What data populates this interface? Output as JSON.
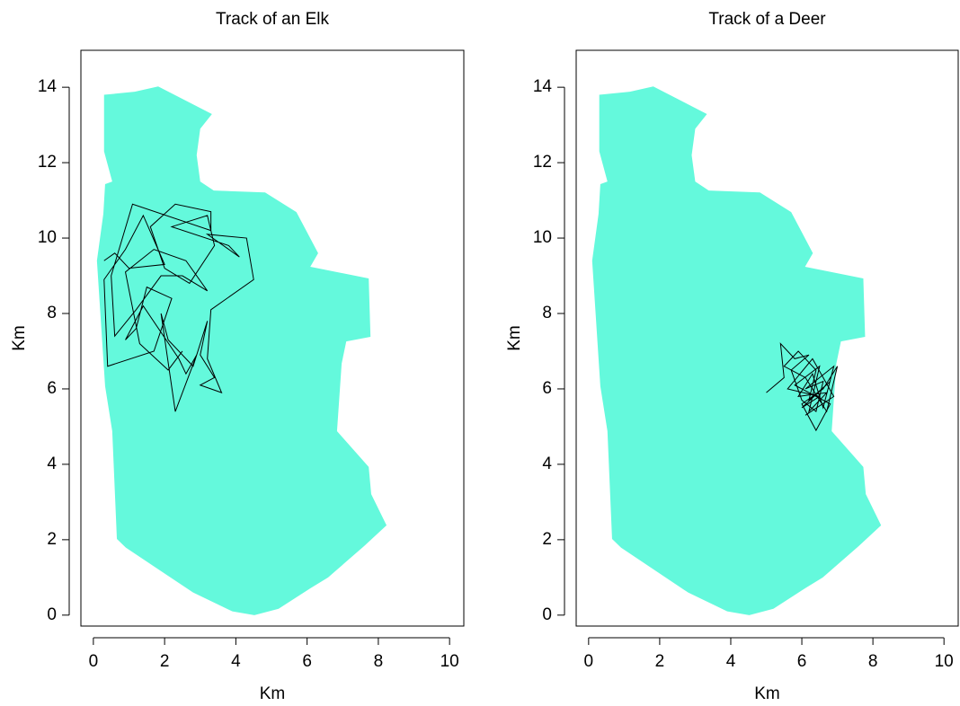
{
  "chart_data": [
    {
      "type": "line",
      "title": "Track of an Elk",
      "xlabel": "Km",
      "ylabel": "Km",
      "xlim": [
        -0.35,
        10.4
      ],
      "ylim": [
        -0.29,
        14.98
      ],
      "xticks": [
        0,
        2,
        4,
        6,
        8,
        10
      ],
      "yticks": [
        0,
        2,
        4,
        6,
        8,
        10,
        12,
        14
      ],
      "region": {
        "color": "#64f9dc",
        "x": [
          0.3,
          1.16,
          1.82,
          3.33,
          3.0,
          2.9,
          3.0,
          3.38,
          4.82,
          5.7,
          6.31,
          6.09,
          7.73,
          7.78,
          7.1,
          6.97,
          6.84,
          7.73,
          7.8,
          8.23,
          7.6,
          6.59,
          6.09,
          5.2,
          4.52,
          3.9,
          2.8,
          0.91,
          0.66,
          0.53,
          0.33,
          0.1,
          0.28,
          0.33,
          0.53,
          0.3
        ],
        "y": [
          13.8,
          13.88,
          14.02,
          13.29,
          12.9,
          12.2,
          11.5,
          11.26,
          11.21,
          10.69,
          9.6,
          9.24,
          8.93,
          7.38,
          7.26,
          6.67,
          4.88,
          3.93,
          3.21,
          2.38,
          1.83,
          1.0,
          0.71,
          0.17,
          0.0,
          0.1,
          0.6,
          1.79,
          2.02,
          4.88,
          6.07,
          9.4,
          10.64,
          11.43,
          11.5,
          12.3
        ]
      },
      "series": [
        {
          "color": "#000000",
          "x": [
            0.3,
            0.6,
            1.0,
            2.0,
            1.4,
            0.9,
            0.3,
            0.4,
            1.7,
            2.2,
            1.5,
            1.2,
            0.9,
            1.4,
            2.4,
            2.6,
            2.9,
            2.3,
            1.9,
            2.1,
            2.8,
            3.2,
            3.0,
            3.4,
            3.0,
            3.6,
            3.2,
            3.3,
            4.5,
            4.3,
            3.2,
            4.1,
            3.8,
            2.2,
            3.2,
            3.4,
            2.7,
            2.0,
            1.6,
            2.3,
            3.3,
            3.3,
            1.1,
            0.5,
            0.6,
            1.2,
            1.9,
            2.5,
            3.2,
            2.6,
            1.7,
            0.9,
            1.3,
            2.1,
            2.5
          ],
          "y": [
            9.4,
            9.6,
            9.2,
            9.3,
            10.6,
            9.7,
            8.9,
            6.6,
            7.0,
            8.4,
            8.7,
            7.6,
            7.3,
            8.2,
            6.8,
            6.4,
            6.9,
            5.4,
            8.0,
            7.3,
            6.6,
            7.8,
            6.9,
            6.3,
            6.1,
            5.9,
            6.8,
            8.1,
            8.9,
            10.0,
            10.1,
            9.5,
            9.8,
            10.3,
            10.6,
            9.8,
            8.8,
            9.2,
            10.3,
            10.9,
            10.7,
            10.2,
            10.9,
            9.0,
            7.4,
            8.1,
            9.0,
            9.0,
            8.6,
            9.4,
            9.7,
            9.1,
            7.2,
            6.5,
            7.0
          ]
        }
      ]
    },
    {
      "type": "line",
      "title": "Track of a Deer",
      "xlabel": "Km",
      "ylabel": "Km",
      "xlim": [
        -0.35,
        10.4
      ],
      "ylim": [
        -0.29,
        14.98
      ],
      "xticks": [
        0,
        2,
        4,
        6,
        8,
        10
      ],
      "yticks": [
        0,
        2,
        4,
        6,
        8,
        10,
        12,
        14
      ],
      "region": {
        "color": "#64f9dc",
        "x": [
          0.3,
          1.16,
          1.82,
          3.33,
          3.0,
          2.9,
          3.0,
          3.38,
          4.82,
          5.7,
          6.31,
          6.09,
          7.73,
          7.78,
          7.1,
          6.97,
          6.84,
          7.73,
          7.8,
          8.23,
          7.6,
          6.59,
          6.09,
          5.2,
          4.52,
          3.9,
          2.8,
          0.91,
          0.66,
          0.53,
          0.33,
          0.1,
          0.28,
          0.33,
          0.53,
          0.3
        ],
        "y": [
          13.8,
          13.88,
          14.02,
          13.29,
          12.9,
          12.2,
          11.5,
          11.26,
          11.21,
          10.69,
          9.6,
          9.24,
          8.93,
          7.38,
          7.26,
          6.67,
          4.88,
          3.93,
          3.21,
          2.38,
          1.83,
          1.0,
          0.71,
          0.17,
          0.0,
          0.1,
          0.6,
          1.79,
          2.02,
          4.88,
          6.07,
          9.4,
          10.64,
          11.43,
          11.5,
          12.3
        ]
      },
      "series": [
        {
          "color": "#000000",
          "x": [
            5.0,
            5.5,
            5.4,
            5.8,
            6.2,
            5.7,
            6.0,
            6.4,
            6.6,
            6.1,
            6.9,
            6.6,
            6.3,
            5.9,
            6.7,
            6.2,
            6.5,
            5.8,
            6.8,
            6.4,
            6.0,
            6.6,
            7.0,
            6.7,
            6.1,
            5.5,
            5.9,
            6.4,
            6.2,
            6.8,
            6.0,
            6.5,
            5.6,
            6.3,
            6.9,
            6.1
          ],
          "y": [
            5.9,
            6.3,
            7.2,
            6.8,
            6.9,
            6.5,
            5.7,
            5.4,
            6.2,
            6.0,
            6.6,
            5.5,
            6.4,
            5.8,
            5.9,
            5.4,
            6.6,
            6.1,
            5.6,
            4.9,
            5.6,
            6.0,
            6.6,
            5.4,
            6.3,
            6.6,
            7.0,
            6.5,
            5.7,
            6.2,
            5.5,
            5.8,
            6.0,
            6.8,
            5.8,
            5.3
          ]
        }
      ]
    }
  ]
}
